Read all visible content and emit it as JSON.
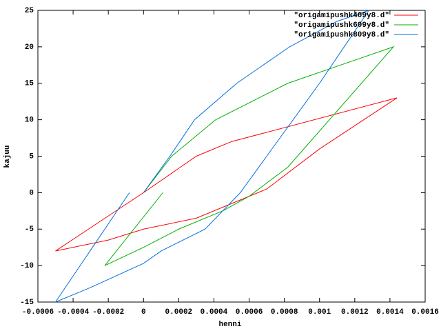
{
  "chart_data": {
    "type": "line",
    "xlabel": "henni",
    "ylabel": "kajuu",
    "xlim": [
      -0.0006,
      0.0016
    ],
    "xticks": [
      -0.0006,
      -0.0004,
      -0.0002,
      0,
      0.0002,
      0.0004,
      0.0006,
      0.0008,
      0.001,
      0.0012,
      0.0014,
      0.0016
    ],
    "ylim": [
      -15,
      25
    ],
    "yticks": [
      -15,
      -10,
      -5,
      0,
      5,
      10,
      15,
      20,
      25
    ],
    "legend": "upper right",
    "series": [
      {
        "name": "\"origamipushk409y8.d\"",
        "color": "#ff0000",
        "x": [
          0,
          0.0003,
          0.0005,
          0.00144,
          0.001,
          0.0007,
          0.0005,
          0.0003,
          0,
          -0.0002,
          -0.0005,
          0
        ],
        "values": [
          0,
          5,
          7,
          13,
          6,
          0.5,
          -1.5,
          -3.5,
          -5,
          -6.5,
          -8,
          0
        ]
      },
      {
        "name": "\"origamipushk609y8.d\"",
        "color": "#00b000",
        "x": [
          0,
          0.00016,
          0.00041,
          0.00082,
          0.00142,
          0.00082,
          0.0006,
          0.00045,
          0.0002,
          0,
          -0.00022,
          0.00011
        ],
        "values": [
          0,
          5,
          10,
          15,
          20,
          3.5,
          -0.5,
          -2.5,
          -5,
          -7.5,
          -10,
          0
        ]
      },
      {
        "name": "\"origamipushk809y8.d\"",
        "color": "#0070e0",
        "x": [
          0,
          0.00015,
          0.00029,
          0.00053,
          0.00083,
          0.0011,
          0.00128,
          0.001,
          0.0007,
          0.00055,
          0.00035,
          0.0001,
          0,
          -0.0003,
          -0.0005,
          -8e-05
        ],
        "values": [
          0,
          5,
          10,
          15,
          20,
          23.5,
          25,
          15,
          5,
          0,
          -5,
          -8,
          -9.7,
          -13,
          -15,
          0
        ]
      }
    ]
  }
}
